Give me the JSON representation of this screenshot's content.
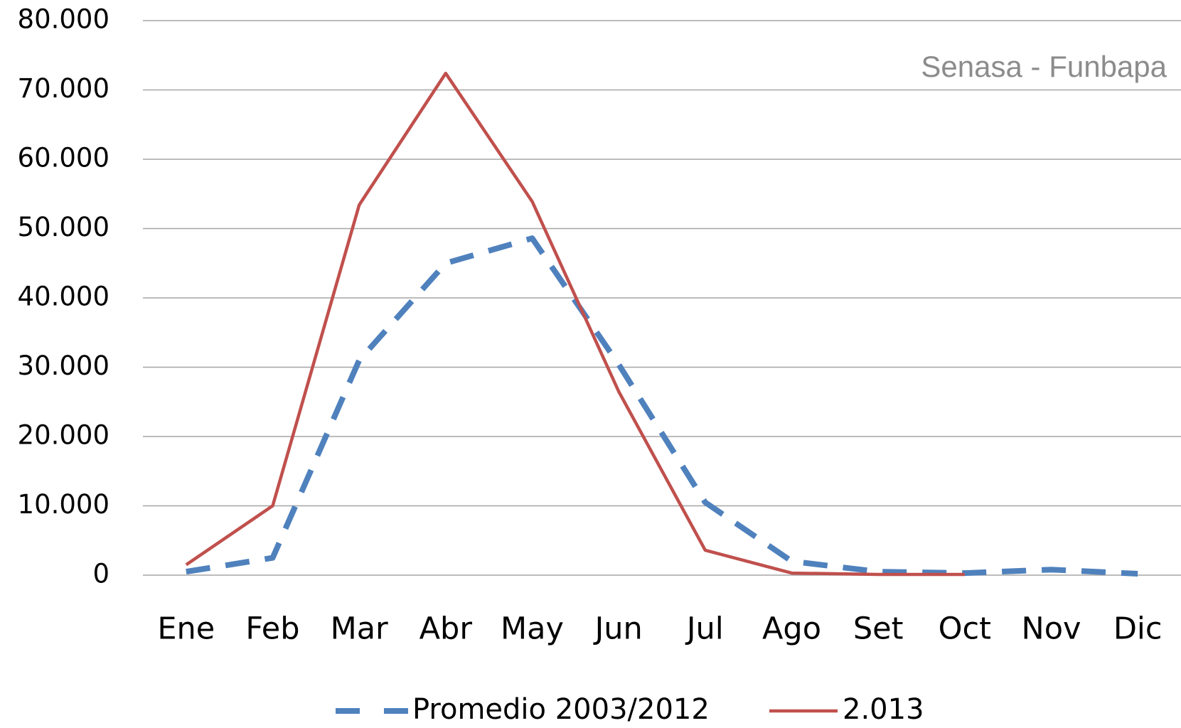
{
  "chart_data": {
    "type": "line",
    "annotation": "Senasa - Funbapa",
    "categories": [
      "Ene",
      "Feb",
      "Mar",
      "Abr",
      "May",
      "Jun",
      "Jul",
      "Ago",
      "Set",
      "Oct",
      "Nov",
      "Dic"
    ],
    "series": [
      {
        "name": "Promedio 2003/2012",
        "color": "#4f81bd",
        "dash": true,
        "values": [
          500,
          2500,
          31000,
          45000,
          48600,
          30400,
          10500,
          2000,
          500,
          300,
          800,
          200
        ]
      },
      {
        "name": "2.013",
        "color": "#c0504d",
        "dash": false,
        "values": [
          1500,
          10000,
          53400,
          72400,
          53900,
          26500,
          3600,
          300,
          100,
          100,
          null,
          null
        ]
      }
    ],
    "ylim": [
      0,
      80000
    ],
    "yticks": [
      0,
      {
        "value": 10000,
        "label": "10.000"
      },
      {
        "value": 20000,
        "label": "20.000"
      },
      {
        "value": 30000,
        "label": "30.000"
      },
      {
        "value": 40000,
        "label": "40.000"
      },
      {
        "value": 50000,
        "label": "50.000"
      },
      {
        "value": 60000,
        "label": "60.000"
      },
      {
        "value": 70000,
        "label": "70.000"
      },
      {
        "value": 80000,
        "label": "80.000"
      }
    ],
    "grid": true,
    "legend": "bottom"
  }
}
